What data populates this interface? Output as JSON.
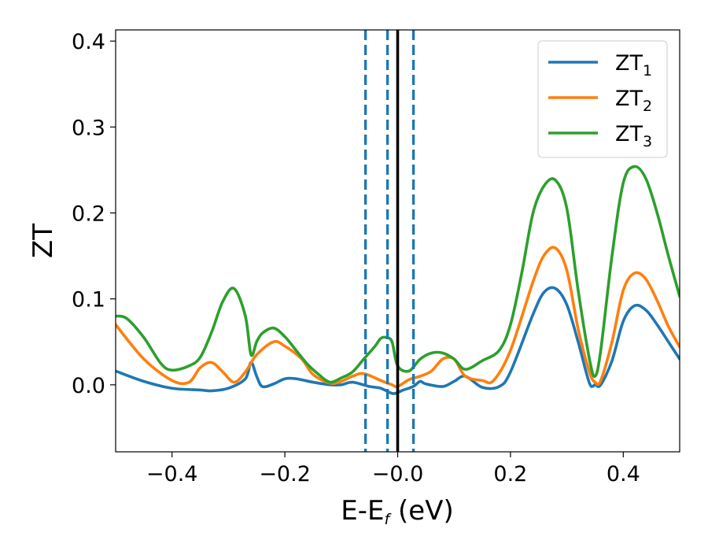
{
  "chart_data": {
    "type": "line",
    "title": "",
    "xlabel": {
      "main": "E-E",
      "sub": "f",
      "tail": " (eV)"
    },
    "ylabel": "ZT",
    "xlim": [
      -0.5,
      0.5
    ],
    "ylim": [
      -0.078,
      0.413
    ],
    "xticks": [
      {
        "value": -0.4,
        "label": "−0.4"
      },
      {
        "value": -0.2,
        "label": "−0.2"
      },
      {
        "value": 0.0,
        "label": "−0.0"
      },
      {
        "value": 0.2,
        "label": "0.2"
      },
      {
        "value": 0.4,
        "label": "0.4"
      }
    ],
    "yticks": [
      {
        "value": 0.0,
        "label": "0.0"
      },
      {
        "value": 0.1,
        "label": "0.1"
      },
      {
        "value": 0.2,
        "label": "0.2"
      },
      {
        "value": 0.3,
        "label": "0.3"
      },
      {
        "value": 0.4,
        "label": "0.4"
      }
    ],
    "grid": false,
    "legend_position": "top-right",
    "series": [
      {
        "name": "ZT",
        "sub": "1",
        "color": "#1f77b4",
        "x": [
          -0.5,
          -0.45,
          -0.4,
          -0.35,
          -0.33,
          -0.3,
          -0.27,
          -0.26,
          -0.25,
          -0.24,
          -0.22,
          -0.2,
          -0.18,
          -0.15,
          -0.12,
          -0.1,
          -0.08,
          -0.05,
          -0.03,
          -0.01,
          0.0,
          0.01,
          0.02,
          0.03,
          0.04,
          0.05,
          0.08,
          0.1,
          0.12,
          0.15,
          0.18,
          0.2,
          0.24,
          0.26,
          0.28,
          0.3,
          0.32,
          0.34,
          0.35,
          0.36,
          0.38,
          0.4,
          0.42,
          0.44,
          0.46,
          0.48,
          0.5
        ],
        "y": [
          0.016,
          0.004,
          -0.004,
          -0.006,
          -0.007,
          -0.004,
          0.007,
          0.026,
          0.01,
          -0.002,
          0.001,
          0.007,
          0.007,
          0.003,
          0.0,
          0.0,
          0.003,
          -0.002,
          -0.004,
          -0.01,
          -0.009,
          -0.006,
          -0.004,
          -0.001,
          0.004,
          0.001,
          -0.002,
          0.004,
          0.01,
          -0.003,
          -0.002,
          0.015,
          0.082,
          0.108,
          0.112,
          0.093,
          0.05,
          0.002,
          0.0,
          0.0,
          0.028,
          0.074,
          0.092,
          0.087,
          0.07,
          0.05,
          0.03
        ]
      },
      {
        "name": "ZT",
        "sub": "2",
        "color": "#ff7f0e",
        "x": [
          -0.5,
          -0.45,
          -0.4,
          -0.37,
          -0.35,
          -0.33,
          -0.31,
          -0.29,
          -0.27,
          -0.25,
          -0.22,
          -0.2,
          -0.17,
          -0.15,
          -0.12,
          -0.1,
          -0.08,
          -0.06,
          -0.03,
          -0.01,
          0.0,
          0.02,
          0.04,
          0.06,
          0.08,
          0.1,
          0.12,
          0.15,
          0.17,
          0.2,
          0.24,
          0.26,
          0.28,
          0.3,
          0.32,
          0.34,
          0.35,
          0.36,
          0.38,
          0.4,
          0.42,
          0.44,
          0.46,
          0.48,
          0.5
        ],
        "y": [
          0.07,
          0.03,
          0.005,
          0.003,
          0.02,
          0.026,
          0.015,
          0.003,
          0.015,
          0.035,
          0.05,
          0.045,
          0.03,
          0.012,
          0.002,
          0.004,
          0.01,
          0.013,
          0.005,
          0.0,
          -0.002,
          0.006,
          0.01,
          0.016,
          0.03,
          0.03,
          0.01,
          0.005,
          0.005,
          0.04,
          0.12,
          0.151,
          0.159,
          0.133,
          0.065,
          0.015,
          0.003,
          0.005,
          0.05,
          0.11,
          0.13,
          0.123,
          0.098,
          0.068,
          0.044
        ]
      },
      {
        "name": "ZT",
        "sub": "3",
        "color": "#2ca02c",
        "x": [
          -0.5,
          -0.48,
          -0.45,
          -0.42,
          -0.4,
          -0.37,
          -0.35,
          -0.33,
          -0.31,
          -0.29,
          -0.27,
          -0.26,
          -0.25,
          -0.24,
          -0.22,
          -0.2,
          -0.18,
          -0.16,
          -0.14,
          -0.12,
          -0.1,
          -0.08,
          -0.06,
          -0.04,
          -0.03,
          -0.02,
          -0.01,
          0.0,
          0.02,
          0.04,
          0.06,
          0.08,
          0.1,
          0.12,
          0.15,
          0.18,
          0.2,
          0.22,
          0.24,
          0.26,
          0.28,
          0.3,
          0.32,
          0.34,
          0.35,
          0.36,
          0.38,
          0.4,
          0.42,
          0.44,
          0.46,
          0.48,
          0.5
        ],
        "y": [
          0.08,
          0.077,
          0.055,
          0.025,
          0.017,
          0.022,
          0.032,
          0.061,
          0.097,
          0.112,
          0.08,
          0.035,
          0.05,
          0.06,
          0.066,
          0.056,
          0.04,
          0.024,
          0.012,
          0.003,
          0.008,
          0.015,
          0.03,
          0.045,
          0.054,
          0.055,
          0.05,
          0.022,
          0.016,
          0.03,
          0.037,
          0.037,
          0.03,
          0.018,
          0.028,
          0.04,
          0.07,
          0.13,
          0.2,
          0.232,
          0.238,
          0.205,
          0.11,
          0.03,
          0.01,
          0.04,
          0.15,
          0.235,
          0.254,
          0.24,
          0.2,
          0.15,
          0.103
        ]
      }
    ],
    "vlines": [
      {
        "x": -0.057,
        "style": "dashed",
        "color": "#1f77b4"
      },
      {
        "x": -0.018,
        "style": "dashed",
        "color": "#1f77b4"
      },
      {
        "x": 0.028,
        "style": "dashed",
        "color": "#1f77b4"
      },
      {
        "x": 0.0,
        "style": "solid",
        "color": "#000000"
      }
    ]
  }
}
